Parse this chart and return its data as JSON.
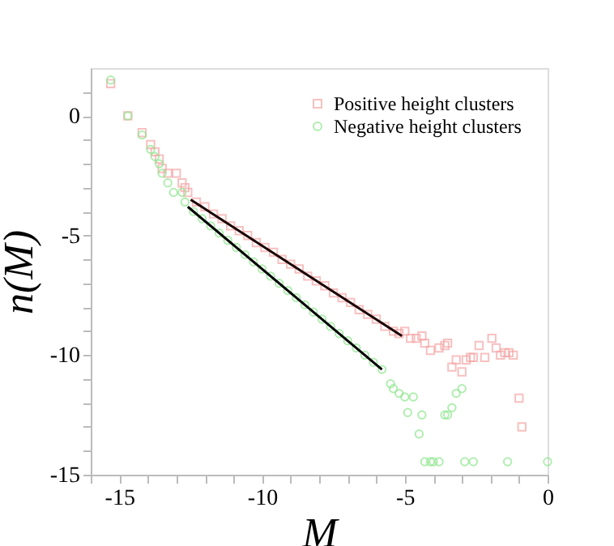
{
  "chart_data": {
    "type": "scatter",
    "xlabel": "M",
    "ylabel": "n(M)",
    "xlim": [
      -16,
      0
    ],
    "ylim": [
      -15,
      2
    ],
    "xticks": [
      {
        "value": -16,
        "label": null
      },
      -15,
      {
        "value": -14,
        "label": null
      },
      {
        "value": -13,
        "label": null
      },
      {
        "value": -12,
        "label": null
      },
      {
        "value": -11,
        "label": null
      },
      -10,
      {
        "value": -9,
        "label": null
      },
      {
        "value": -8,
        "label": null
      },
      {
        "value": -7,
        "label": null
      },
      {
        "value": -6,
        "label": null
      },
      -5,
      {
        "value": -4,
        "label": null
      },
      {
        "value": -3,
        "label": null
      },
      {
        "value": -2,
        "label": null
      },
      {
        "value": -1,
        "label": null
      },
      0
    ],
    "yticks": [
      -15,
      {
        "value": -14,
        "label": null
      },
      {
        "value": -13,
        "label": null
      },
      {
        "value": -12,
        "label": null
      },
      {
        "value": -11,
        "label": null
      },
      -10,
      {
        "value": -9,
        "label": null
      },
      {
        "value": -8,
        "label": null
      },
      {
        "value": -7,
        "label": null
      },
      {
        "value": -6,
        "label": null
      },
      -5,
      {
        "value": -4,
        "label": null
      },
      {
        "value": -3,
        "label": null
      },
      {
        "value": -2,
        "label": null
      },
      {
        "value": -1,
        "label": null
      },
      0,
      {
        "value": 1,
        "label": null
      }
    ],
    "grid": false,
    "legend": "top right",
    "series": [
      {
        "name": "Positive height clusters",
        "marker": "square",
        "color": "#f4a6a6",
        "x": [
          -15.3,
          -14.7,
          -14.2,
          -13.9,
          -13.75,
          -13.6,
          -13.5,
          -13.3,
          -13.0,
          -12.8,
          -12.7,
          -12.6,
          -12.3,
          -12.0,
          -11.7,
          -11.4,
          -11.1,
          -10.8,
          -10.5,
          -10.2,
          -9.9,
          -9.6,
          -9.3,
          -9.0,
          -8.7,
          -8.4,
          -8.1,
          -7.8,
          -7.5,
          -7.2,
          -6.9,
          -6.6,
          -6.3,
          -6.0,
          -5.7,
          -5.4,
          -5.2,
          -5.0,
          -4.8,
          -4.6,
          -4.4,
          -4.3,
          -4.1,
          -3.8,
          -3.6,
          -3.5,
          -3.35,
          -3.2,
          -3.0,
          -2.85,
          -2.7,
          -2.6,
          -2.4,
          -2.2,
          -1.95,
          -1.8,
          -1.65,
          -1.5,
          -1.35,
          -1.2,
          -1.0,
          -0.9
        ],
        "values": [
          1.35,
          0,
          -0.7,
          -1.2,
          -1.5,
          -1.8,
          -2.2,
          -2.4,
          -2.4,
          -2.8,
          -3.0,
          -3.2,
          -3.6,
          -3.8,
          -4.1,
          -4.3,
          -4.6,
          -4.8,
          -5.0,
          -5.3,
          -5.5,
          -5.7,
          -6.0,
          -6.2,
          -6.4,
          -6.7,
          -6.9,
          -7.1,
          -7.4,
          -7.6,
          -7.8,
          -8.1,
          -8.3,
          -8.5,
          -8.8,
          -9.0,
          -9.1,
          -9.0,
          -9.3,
          -9.3,
          -9.2,
          -9.5,
          -9.8,
          -9.7,
          -9.6,
          -9.5,
          -10.5,
          -10.2,
          -10.7,
          -10.2,
          -10.1,
          -10.1,
          -9.6,
          -10.1,
          -9.3,
          -9.7,
          -10.0,
          -9.9,
          -9.9,
          -10.0,
          -11.8,
          -13.0
        ]
      },
      {
        "name": "Negative height clusters",
        "marker": "circle",
        "color": "#8ee68e",
        "x": [
          -15.3,
          -14.7,
          -14.2,
          -13.9,
          -13.75,
          -13.6,
          -13.5,
          -13.3,
          -13.1,
          -12.8,
          -12.7,
          -12.4,
          -12.1,
          -11.8,
          -11.5,
          -11.2,
          -10.9,
          -10.6,
          -10.3,
          -10.0,
          -9.7,
          -9.4,
          -9.1,
          -8.8,
          -8.5,
          -8.2,
          -7.9,
          -7.6,
          -7.3,
          -7.0,
          -6.7,
          -6.4,
          -6.1,
          -5.8,
          -5.5,
          -5.4,
          -5.2,
          -5.0,
          -4.9,
          -4.7,
          -4.5,
          -4.4,
          -4.3,
          -4.1,
          -4.0,
          -3.8,
          -3.6,
          -3.5,
          -3.35,
          -3.2,
          -3.0,
          -2.9,
          -2.6,
          -1.4,
          0
        ],
        "values": [
          1.5,
          0,
          -0.8,
          -1.4,
          -1.7,
          -2.0,
          -2.4,
          -2.8,
          -3.2,
          -3.2,
          -3.6,
          -4.0,
          -4.3,
          -4.6,
          -4.9,
          -5.2,
          -5.5,
          -5.8,
          -6.1,
          -6.4,
          -6.7,
          -7.0,
          -7.3,
          -7.6,
          -7.9,
          -8.2,
          -8.5,
          -8.8,
          -9.1,
          -9.4,
          -9.7,
          -10.0,
          -10.3,
          -10.6,
          -11.2,
          -11.4,
          -11.6,
          -11.75,
          -12.4,
          -11.75,
          -13.3,
          -12.5,
          -14.46,
          -14.46,
          -14.46,
          -14.46,
          -12.5,
          -12.5,
          -12.2,
          -11.6,
          -11.4,
          -14.46,
          -14.46,
          -14.46,
          -14.46
        ]
      },
      {
        "type": "line",
        "color": "#1a0000",
        "x": [
          -12.5,
          -5.1
        ],
        "values": [
          -3.5,
          -9.2
        ]
      },
      {
        "type": "line",
        "color": "#000000",
        "x": [
          -12.6,
          -5.8
        ],
        "values": [
          -3.8,
          -10.6
        ]
      }
    ]
  }
}
